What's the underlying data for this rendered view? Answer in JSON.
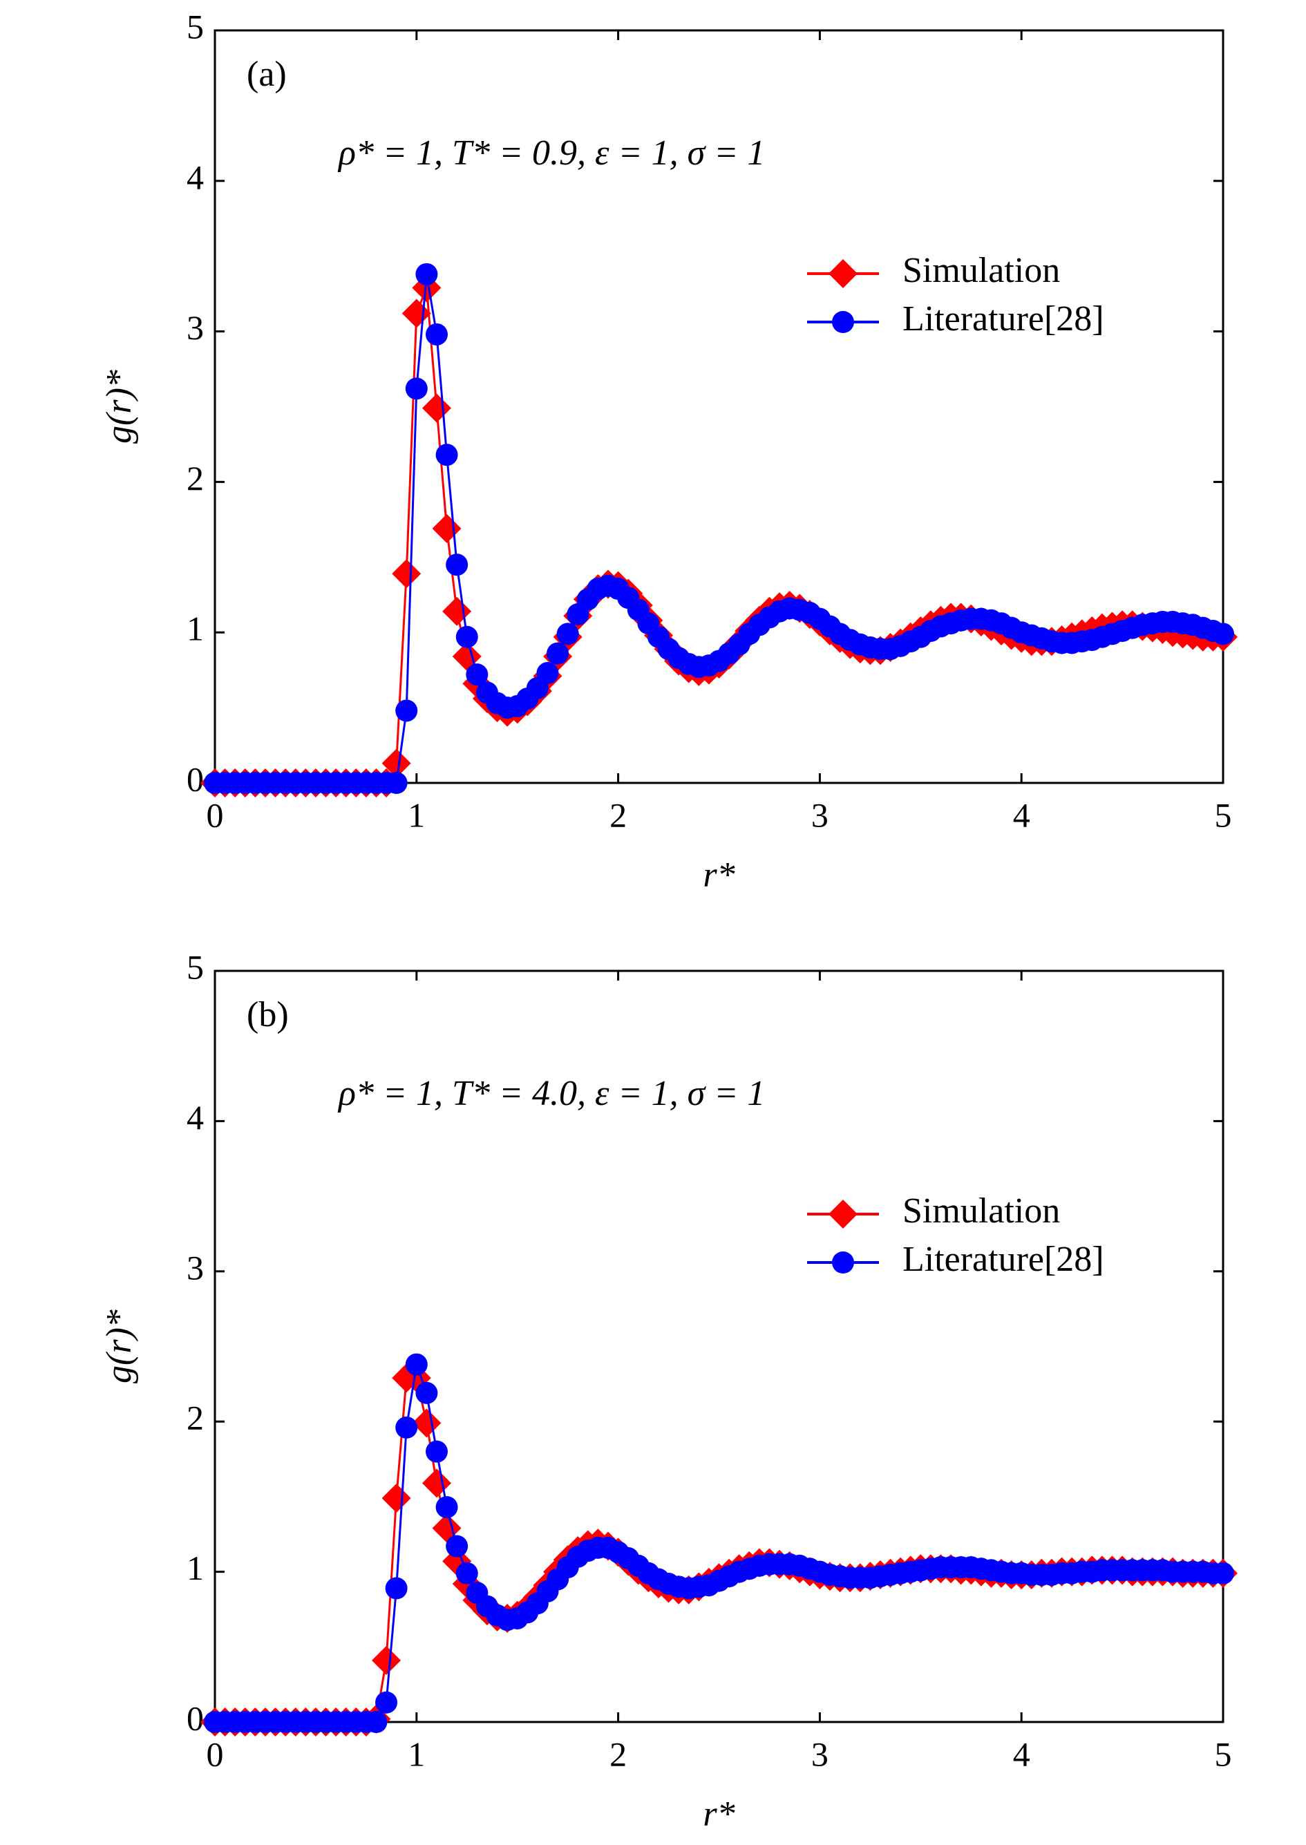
{
  "chart_data": [
    {
      "type": "line",
      "panel_label": "(a)",
      "annotation": "ρ* = 1, T* = 0.9, ε = 1, σ = 1",
      "x_label": "r*",
      "y_label": "g(r)*",
      "x": [
        0,
        0.05,
        0.1,
        0.15,
        0.2,
        0.25,
        0.3,
        0.35,
        0.4,
        0.45,
        0.5,
        0.55,
        0.6,
        0.65,
        0.7,
        0.75,
        0.8,
        0.85,
        0.9,
        0.95,
        1,
        1.05,
        1.1,
        1.15,
        1.2,
        1.25,
        1.3,
        1.35,
        1.4,
        1.45,
        1.5,
        1.55,
        1.6,
        1.65,
        1.7,
        1.75,
        1.8,
        1.85,
        1.9,
        1.95,
        2,
        2.05,
        2.1,
        2.15,
        2.2,
        2.25,
        2.3,
        2.35,
        2.4,
        2.45,
        2.5,
        2.55,
        2.6,
        2.65,
        2.7,
        2.75,
        2.8,
        2.85,
        2.9,
        2.95,
        3,
        3.05,
        3.1,
        3.15,
        3.2,
        3.25,
        3.3,
        3.35,
        3.4,
        3.45,
        3.5,
        3.55,
        3.6,
        3.65,
        3.7,
        3.75,
        3.8,
        3.85,
        3.9,
        3.95,
        4,
        4.05,
        4.1,
        4.15,
        4.2,
        4.25,
        4.3,
        4.35,
        4.4,
        4.45,
        4.5,
        4.55,
        4.6,
        4.65,
        4.7,
        4.75,
        4.8,
        4.85,
        4.9,
        4.95,
        5
      ],
      "series": [
        {
          "name": "Simulation",
          "color": "#ff0000",
          "marker": "diamond",
          "values": [
            0,
            0,
            0,
            0,
            0,
            0,
            0,
            0,
            0,
            0,
            0,
            0,
            0,
            0,
            0,
            0,
            0,
            0,
            0.13,
            1.39,
            3.12,
            3.29,
            2.49,
            1.69,
            1.14,
            0.84,
            0.66,
            0.56,
            0.5,
            0.47,
            0.49,
            0.54,
            0.61,
            0.71,
            0.84,
            0.97,
            1.11,
            1.22,
            1.29,
            1.32,
            1.31,
            1.26,
            1.18,
            1.08,
            0.98,
            0.89,
            0.81,
            0.76,
            0.74,
            0.75,
            0.79,
            0.85,
            0.93,
            1.01,
            1.08,
            1.14,
            1.17,
            1.18,
            1.16,
            1.12,
            1.07,
            1.01,
            0.96,
            0.92,
            0.89,
            0.88,
            0.88,
            0.9,
            0.93,
            0.97,
            1.01,
            1.05,
            1.08,
            1.1,
            1.1,
            1.09,
            1.07,
            1.04,
            1.01,
            0.98,
            0.96,
            0.94,
            0.94,
            0.94,
            0.95,
            0.97,
            0.99,
            1.01,
            1.03,
            1.04,
            1.05,
            1.05,
            1.04,
            1.03,
            1.02,
            1.0,
            0.99,
            0.98,
            0.97,
            0.97,
            0.97
          ]
        },
        {
          "name": "Literature[28]",
          "color": "#0000ff",
          "marker": "circle",
          "values": [
            0,
            0,
            0,
            0,
            0,
            0,
            0,
            0,
            0,
            0,
            0,
            0,
            0,
            0,
            0,
            0,
            0,
            0,
            0,
            0.48,
            2.62,
            3.38,
            2.98,
            2.18,
            1.45,
            0.97,
            0.72,
            0.6,
            0.53,
            0.5,
            0.51,
            0.56,
            0.63,
            0.73,
            0.86,
            0.99,
            1.12,
            1.22,
            1.29,
            1.31,
            1.29,
            1.23,
            1.15,
            1.06,
            0.97,
            0.89,
            0.83,
            0.79,
            0.77,
            0.78,
            0.81,
            0.86,
            0.92,
            0.99,
            1.05,
            1.1,
            1.14,
            1.16,
            1.15,
            1.13,
            1.09,
            1.04,
            0.99,
            0.95,
            0.92,
            0.9,
            0.89,
            0.89,
            0.91,
            0.94,
            0.97,
            1.01,
            1.04,
            1.06,
            1.08,
            1.09,
            1.09,
            1.08,
            1.06,
            1.03,
            1.0,
            0.98,
            0.96,
            0.94,
            0.93,
            0.93,
            0.94,
            0.95,
            0.97,
            0.99,
            1.01,
            1.03,
            1.05,
            1.06,
            1.07,
            1.07,
            1.06,
            1.05,
            1.03,
            1.01,
            0.99
          ]
        }
      ],
      "xlim": [
        0,
        5
      ],
      "ylim": [
        0,
        5
      ],
      "xticks": [
        0,
        1,
        2,
        3,
        4,
        5
      ],
      "yticks": [
        0,
        1,
        2,
        3,
        4,
        5
      ],
      "legend": "upper right"
    },
    {
      "type": "line",
      "panel_label": "(b)",
      "annotation": "ρ* = 1, T* = 4.0, ε = 1, σ = 1",
      "x_label": "r*",
      "y_label": "g(r)*",
      "x": [
        0,
        0.05,
        0.1,
        0.15,
        0.2,
        0.25,
        0.3,
        0.35,
        0.4,
        0.45,
        0.5,
        0.55,
        0.6,
        0.65,
        0.7,
        0.75,
        0.8,
        0.85,
        0.9,
        0.95,
        1,
        1.05,
        1.1,
        1.15,
        1.2,
        1.25,
        1.3,
        1.35,
        1.4,
        1.45,
        1.5,
        1.55,
        1.6,
        1.65,
        1.7,
        1.75,
        1.8,
        1.85,
        1.9,
        1.95,
        2,
        2.05,
        2.1,
        2.15,
        2.2,
        2.25,
        2.3,
        2.35,
        2.4,
        2.45,
        2.5,
        2.55,
        2.6,
        2.65,
        2.7,
        2.75,
        2.8,
        2.85,
        2.9,
        2.95,
        3,
        3.05,
        3.1,
        3.15,
        3.2,
        3.25,
        3.3,
        3.35,
        3.4,
        3.45,
        3.5,
        3.55,
        3.6,
        3.65,
        3.7,
        3.75,
        3.8,
        3.85,
        3.9,
        3.95,
        4,
        4.05,
        4.1,
        4.15,
        4.2,
        4.25,
        4.3,
        4.35,
        4.4,
        4.45,
        4.5,
        4.55,
        4.6,
        4.65,
        4.7,
        4.75,
        4.8,
        4.85,
        4.9,
        4.95,
        5
      ],
      "series": [
        {
          "name": "Simulation",
          "color": "#ff0000",
          "marker": "diamond",
          "values": [
            0,
            0,
            0,
            0,
            0,
            0,
            0,
            0,
            0,
            0,
            0,
            0,
            0,
            0,
            0,
            0,
            0.02,
            0.41,
            1.49,
            2.29,
            2.29,
            1.99,
            1.59,
            1.29,
            1.07,
            0.92,
            0.81,
            0.74,
            0.7,
            0.69,
            0.71,
            0.76,
            0.83,
            0.91,
            1.0,
            1.08,
            1.14,
            1.18,
            1.19,
            1.17,
            1.13,
            1.07,
            1.01,
            0.96,
            0.92,
            0.89,
            0.88,
            0.88,
            0.9,
            0.93,
            0.96,
            0.99,
            1.02,
            1.04,
            1.06,
            1.06,
            1.05,
            1.04,
            1.02,
            1.0,
            0.98,
            0.97,
            0.96,
            0.96,
            0.96,
            0.97,
            0.98,
            0.99,
            1.0,
            1.01,
            1.02,
            1.02,
            1.02,
            1.02,
            1.01,
            1.01,
            1.0,
            0.99,
            0.99,
            0.98,
            0.98,
            0.98,
            0.99,
            0.99,
            1.0,
            1.0,
            1.0,
            1.01,
            1.01,
            1.01,
            1.01,
            1.0,
            1.0,
            1.0,
            1.0,
            1.0,
            0.99,
            0.99,
            0.99,
            0.99,
            0.99
          ]
        },
        {
          "name": "Literature[28]",
          "color": "#0000ff",
          "marker": "circle",
          "values": [
            0,
            0,
            0,
            0,
            0,
            0,
            0,
            0,
            0,
            0,
            0,
            0,
            0,
            0,
            0,
            0,
            0,
            0.13,
            0.89,
            1.96,
            2.38,
            2.19,
            1.8,
            1.43,
            1.17,
            0.99,
            0.86,
            0.77,
            0.71,
            0.68,
            0.69,
            0.73,
            0.79,
            0.87,
            0.95,
            1.03,
            1.1,
            1.14,
            1.16,
            1.16,
            1.13,
            1.09,
            1.04,
            0.99,
            0.95,
            0.92,
            0.9,
            0.89,
            0.9,
            0.91,
            0.94,
            0.97,
            1.0,
            1.02,
            1.04,
            1.05,
            1.05,
            1.05,
            1.04,
            1.02,
            1.0,
            0.98,
            0.97,
            0.96,
            0.96,
            0.96,
            0.97,
            0.98,
            0.99,
            1.0,
            1.01,
            1.02,
            1.03,
            1.03,
            1.03,
            1.03,
            1.02,
            1.01,
            1.0,
            0.99,
            0.99,
            0.98,
            0.98,
            0.98,
            0.99,
            0.99,
            1.0,
            1.0,
            1.01,
            1.01,
            1.01,
            1.01,
            1.01,
            1.01,
            1.01,
            1.0,
            1.0,
            1.0,
            1.0,
            0.99,
            0.99
          ]
        }
      ],
      "xlim": [
        0,
        5
      ],
      "ylim": [
        0,
        5
      ],
      "xticks": [
        0,
        1,
        2,
        3,
        4,
        5
      ],
      "yticks": [
        0,
        1,
        2,
        3,
        4,
        5
      ],
      "legend": "upper right"
    }
  ]
}
